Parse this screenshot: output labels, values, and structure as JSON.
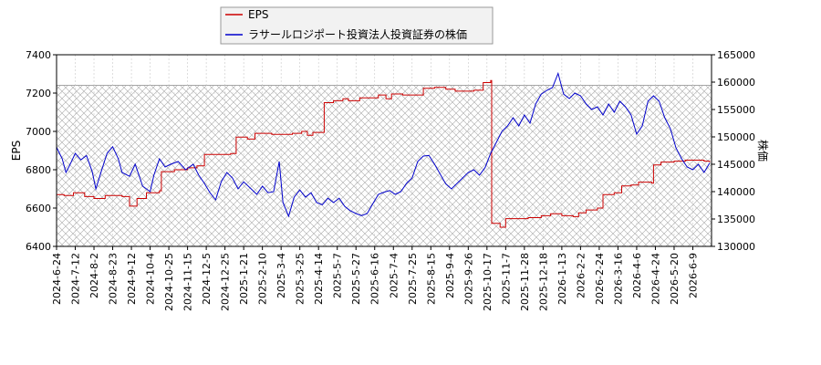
{
  "chart_data": {
    "type": "line",
    "x_ticks": [
      "2024-6-24",
      "2024-7-12",
      "2024-8-2",
      "2024-8-23",
      "2024-9-12",
      "2024-10-4",
      "2024-10-25",
      "2024-11-15",
      "2024-12-5",
      "2024-12-25",
      "2025-1-21",
      "2025-2-10",
      "2025-3-4",
      "2025-3-25",
      "2025-4-14",
      "2025-5-7",
      "2025-5-27",
      "2025-6-16",
      "2025-7-4",
      "2025-7-25",
      "2025-8-15",
      "2025-9-4",
      "2025-9-26",
      "2025-10-17",
      "2025-11-7",
      "2025-11-28",
      "2025-12-18",
      "2026-1-13",
      "2026-2-2",
      "2026-2-24",
      "2026-3-16",
      "2026-4-6",
      "2026-4-24",
      "2026-5-20",
      "2026-6-9"
    ],
    "y_left": {
      "label": "EPS",
      "ylim": [
        6400,
        7400
      ],
      "ticks": [
        6400,
        6600,
        6800,
        7000,
        7200,
        7400
      ]
    },
    "y_right": {
      "label": "株価",
      "ylim": [
        130000,
        165000
      ],
      "ticks": [
        130000,
        135000,
        140000,
        145000,
        150000,
        155000,
        160000,
        165000
      ]
    },
    "legend_position": "top-center",
    "hatched_band": {
      "from_eps": 6400,
      "to_eps": 7240
    },
    "grid": true,
    "series": [
      {
        "name": "EPS",
        "color": "#cc0000",
        "axis": "left",
        "points": [
          [
            0,
            6670
          ],
          [
            0.4,
            6665
          ],
          [
            0.9,
            6680
          ],
          [
            1.5,
            6660
          ],
          [
            2.0,
            6650
          ],
          [
            2.6,
            6665
          ],
          [
            3.5,
            6660
          ],
          [
            3.9,
            6610
          ],
          [
            4.3,
            6650
          ],
          [
            4.8,
            6680
          ],
          [
            5.5,
            6690
          ],
          [
            5.6,
            6790
          ],
          [
            6.3,
            6800
          ],
          [
            7.0,
            6810
          ],
          [
            7.5,
            6820
          ],
          [
            7.9,
            6880
          ],
          [
            8.5,
            6880
          ],
          [
            9.3,
            6885
          ],
          [
            9.6,
            6970
          ],
          [
            10.2,
            6960
          ],
          [
            10.6,
            6990
          ],
          [
            11.5,
            6985
          ],
          [
            12.6,
            6990
          ],
          [
            13.1,
            7000
          ],
          [
            13.4,
            6980
          ],
          [
            13.7,
            6995
          ],
          [
            14.2,
            6995
          ],
          [
            14.3,
            7150
          ],
          [
            14.8,
            7160
          ],
          [
            15.3,
            7170
          ],
          [
            15.6,
            7160
          ],
          [
            16.2,
            7175
          ],
          [
            17.2,
            7190
          ],
          [
            17.6,
            7170
          ],
          [
            17.9,
            7195
          ],
          [
            18.5,
            7190
          ],
          [
            19.5,
            7190
          ],
          [
            19.6,
            7225
          ],
          [
            20.2,
            7230
          ],
          [
            20.8,
            7220
          ],
          [
            21.3,
            7210
          ],
          [
            22.3,
            7215
          ],
          [
            22.8,
            7255
          ],
          [
            23.2,
            7265
          ],
          [
            23.25,
            6520
          ],
          [
            23.7,
            6500
          ],
          [
            24.0,
            6545
          ],
          [
            24.6,
            6545
          ],
          [
            25.2,
            6550
          ],
          [
            25.9,
            6560
          ],
          [
            26.4,
            6570
          ],
          [
            27.0,
            6560
          ],
          [
            27.6,
            6555
          ],
          [
            27.9,
            6575
          ],
          [
            28.3,
            6590
          ],
          [
            28.9,
            6600
          ],
          [
            29.2,
            6670
          ],
          [
            29.8,
            6680
          ],
          [
            30.2,
            6715
          ],
          [
            30.7,
            6720
          ],
          [
            31.1,
            6735
          ],
          [
            31.8,
            6730
          ],
          [
            31.9,
            6825
          ],
          [
            32.3,
            6840
          ],
          [
            33.0,
            6845
          ],
          [
            33.6,
            6850
          ],
          [
            34.2,
            6850
          ],
          [
            34.6,
            6845
          ],
          [
            34.9,
            6840
          ]
        ]
      },
      {
        "name": "ラサールロジポート投資法人投資証券の株価",
        "color": "#0000cc",
        "axis": "right",
        "points": [
          [
            0,
            148100
          ],
          [
            0.3,
            146000
          ],
          [
            0.5,
            143500
          ],
          [
            0.7,
            144800
          ],
          [
            1.0,
            147000
          ],
          [
            1.3,
            145800
          ],
          [
            1.6,
            146600
          ],
          [
            1.9,
            143700
          ],
          [
            2.1,
            140500
          ],
          [
            2.4,
            143800
          ],
          [
            2.7,
            147000
          ],
          [
            3.0,
            148200
          ],
          [
            3.3,
            146000
          ],
          [
            3.5,
            143500
          ],
          [
            3.9,
            142800
          ],
          [
            4.2,
            145000
          ],
          [
            4.6,
            141000
          ],
          [
            5.0,
            140000
          ],
          [
            5.2,
            143000
          ],
          [
            5.5,
            146000
          ],
          [
            5.8,
            144500
          ],
          [
            6.1,
            145000
          ],
          [
            6.5,
            145500
          ],
          [
            6.9,
            144000
          ],
          [
            7.3,
            145000
          ],
          [
            7.6,
            143000
          ],
          [
            7.9,
            141500
          ],
          [
            8.2,
            139800
          ],
          [
            8.5,
            138500
          ],
          [
            8.8,
            141800
          ],
          [
            9.1,
            143500
          ],
          [
            9.4,
            142500
          ],
          [
            9.7,
            140500
          ],
          [
            10.0,
            141800
          ],
          [
            10.4,
            140500
          ],
          [
            10.7,
            139500
          ],
          [
            11.0,
            141000
          ],
          [
            11.3,
            139800
          ],
          [
            11.6,
            140000
          ],
          [
            11.9,
            145500
          ],
          [
            12.1,
            138000
          ],
          [
            12.4,
            135500
          ],
          [
            12.7,
            139000
          ],
          [
            13.0,
            140300
          ],
          [
            13.3,
            139000
          ],
          [
            13.6,
            139800
          ],
          [
            13.9,
            138000
          ],
          [
            14.2,
            137600
          ],
          [
            14.5,
            138800
          ],
          [
            14.8,
            138000
          ],
          [
            15.1,
            138800
          ],
          [
            15.4,
            137300
          ],
          [
            15.7,
            136500
          ],
          [
            16.0,
            136000
          ],
          [
            16.3,
            135600
          ],
          [
            16.6,
            136000
          ],
          [
            16.9,
            137800
          ],
          [
            17.2,
            139500
          ],
          [
            17.5,
            139900
          ],
          [
            17.8,
            140200
          ],
          [
            18.1,
            139500
          ],
          [
            18.4,
            140000
          ],
          [
            18.7,
            141500
          ],
          [
            19.0,
            142500
          ],
          [
            19.3,
            145500
          ],
          [
            19.6,
            146500
          ],
          [
            19.9,
            146600
          ],
          [
            20.2,
            145000
          ],
          [
            20.5,
            143200
          ],
          [
            20.8,
            141400
          ],
          [
            21.1,
            140500
          ],
          [
            21.4,
            141500
          ],
          [
            21.7,
            142500
          ],
          [
            22.0,
            143500
          ],
          [
            22.3,
            144000
          ],
          [
            22.6,
            143000
          ],
          [
            22.9,
            144400
          ],
          [
            23.2,
            147000
          ],
          [
            23.5,
            149000
          ],
          [
            23.8,
            151000
          ],
          [
            24.1,
            152000
          ],
          [
            24.4,
            153500
          ],
          [
            24.7,
            152000
          ],
          [
            25.0,
            154000
          ],
          [
            25.3,
            152500
          ],
          [
            25.6,
            156000
          ],
          [
            25.9,
            157800
          ],
          [
            26.2,
            158500
          ],
          [
            26.5,
            159000
          ],
          [
            26.8,
            161600
          ],
          [
            27.1,
            157800
          ],
          [
            27.4,
            157000
          ],
          [
            27.7,
            158000
          ],
          [
            28.0,
            157500
          ],
          [
            28.3,
            156000
          ],
          [
            28.6,
            155000
          ],
          [
            28.9,
            155500
          ],
          [
            29.2,
            154000
          ],
          [
            29.5,
            156000
          ],
          [
            29.8,
            154500
          ],
          [
            30.1,
            156500
          ],
          [
            30.4,
            155500
          ],
          [
            30.7,
            154000
          ],
          [
            31.0,
            150500
          ],
          [
            31.3,
            152000
          ],
          [
            31.6,
            156500
          ],
          [
            31.9,
            157500
          ],
          [
            32.2,
            156500
          ],
          [
            32.5,
            153500
          ],
          [
            32.8,
            151500
          ],
          [
            33.1,
            148000
          ],
          [
            33.4,
            146000
          ],
          [
            33.7,
            144500
          ],
          [
            34.0,
            144000
          ],
          [
            34.3,
            145000
          ],
          [
            34.6,
            143500
          ],
          [
            34.9,
            145200
          ]
        ]
      }
    ]
  }
}
